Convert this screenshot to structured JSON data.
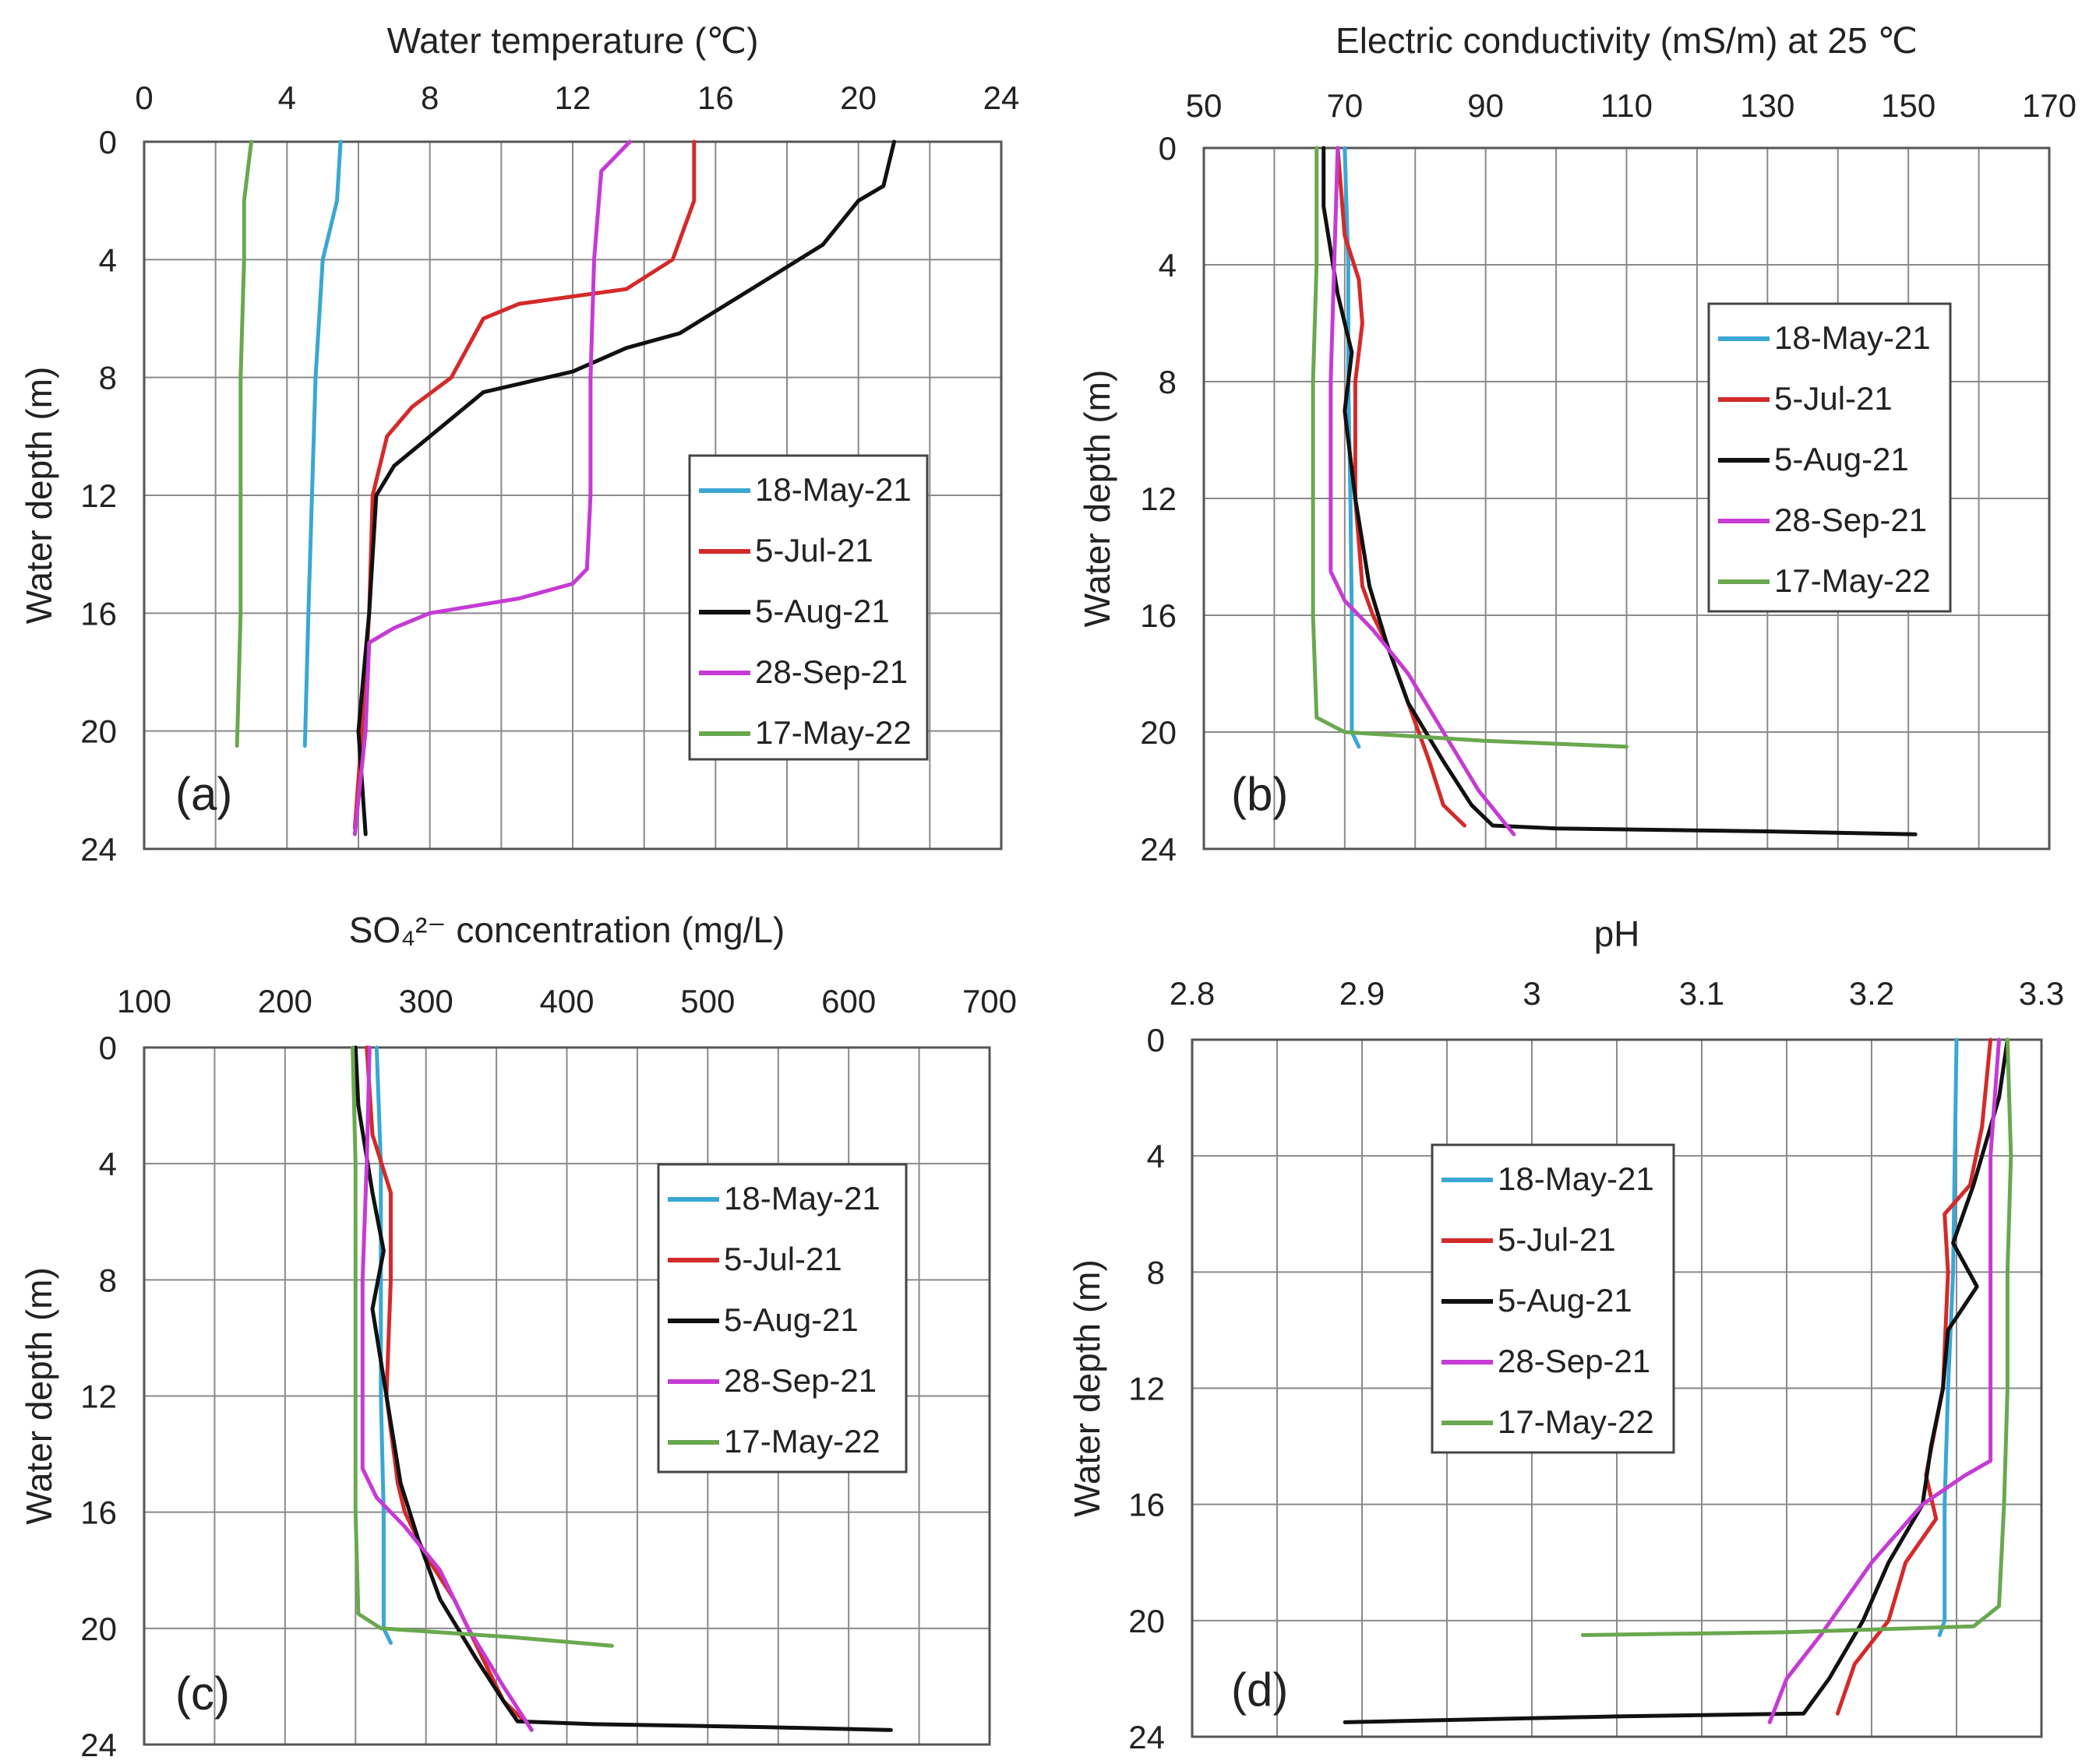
{
  "figure": {
    "panels": [
      {
        "id": "a",
        "title": "Water temperature (℃)"
      },
      {
        "id": "b",
        "title": "Electric conductivity (mS/m) at 25 ℃"
      },
      {
        "id": "c",
        "title": "SO₄²⁻ concentration (mg/L)"
      },
      {
        "id": "d",
        "title": "pH"
      }
    ]
  },
  "series_colors": {
    "18-May-21": "#3aa7d4",
    "5-Jul-21": "#d42a2a",
    "5-Aug-21": "#111111",
    "28-Sep-21": "#c53bd4",
    "17-May-22": "#6aa84f"
  },
  "chart_data": [
    {
      "type": "line",
      "panel_label": "(a)",
      "title": "Water temperature (℃)",
      "xlabel": "Water temperature (℃)",
      "ylabel": "Water depth (m)",
      "xlim": [
        0,
        24
      ],
      "ylim": [
        0,
        24
      ],
      "y_inverted": true,
      "x_axis_position": "top",
      "xticks": [
        "0",
        "4",
        "8",
        "12",
        "16",
        "20",
        "24"
      ],
      "yticks": [
        "0",
        "4",
        "8",
        "12",
        "16",
        "20",
        "24"
      ],
      "grid": true,
      "legend_position": "middle-right",
      "series": [
        {
          "name": "18-May-21",
          "points": [
            [
              5.5,
              0
            ],
            [
              5.4,
              2
            ],
            [
              5.0,
              4
            ],
            [
              4.8,
              8
            ],
            [
              4.7,
              12
            ],
            [
              4.6,
              16
            ],
            [
              4.5,
              20.5
            ]
          ]
        },
        {
          "name": "5-Jul-21",
          "points": [
            [
              15.4,
              0
            ],
            [
              15.4,
              2
            ],
            [
              14.8,
              4
            ],
            [
              13.5,
              5
            ],
            [
              10.5,
              5.5
            ],
            [
              9.5,
              6
            ],
            [
              8.6,
              8
            ],
            [
              7.5,
              9
            ],
            [
              6.8,
              10
            ],
            [
              6.4,
              12
            ],
            [
              6.3,
              16
            ],
            [
              6.1,
              20
            ],
            [
              5.9,
              23.3
            ]
          ]
        },
        {
          "name": "5-Aug-21",
          "points": [
            [
              21.0,
              0
            ],
            [
              20.7,
              1.5
            ],
            [
              20.0,
              2
            ],
            [
              19.0,
              3.5
            ],
            [
              17.0,
              5
            ],
            [
              15.0,
              6.5
            ],
            [
              13.5,
              7
            ],
            [
              12.0,
              7.8
            ],
            [
              9.5,
              8.5
            ],
            [
              8.0,
              10
            ],
            [
              7.0,
              11
            ],
            [
              6.5,
              12
            ],
            [
              6.3,
              16
            ],
            [
              6.0,
              20
            ],
            [
              6.2,
              23.5
            ]
          ]
        },
        {
          "name": "28-Sep-21",
          "points": [
            [
              13.6,
              0
            ],
            [
              12.8,
              1
            ],
            [
              12.6,
              4
            ],
            [
              12.5,
              8
            ],
            [
              12.5,
              12
            ],
            [
              12.4,
              14.5
            ],
            [
              12.0,
              15
            ],
            [
              10.5,
              15.5
            ],
            [
              8.0,
              16
            ],
            [
              7.0,
              16.5
            ],
            [
              6.3,
              17
            ],
            [
              6.2,
              20
            ],
            [
              5.9,
              23.5
            ]
          ]
        },
        {
          "name": "17-May-22",
          "points": [
            [
              3.0,
              0
            ],
            [
              2.8,
              2
            ],
            [
              2.8,
              4
            ],
            [
              2.7,
              8
            ],
            [
              2.7,
              12
            ],
            [
              2.7,
              16
            ],
            [
              2.6,
              20.5
            ]
          ]
        }
      ]
    },
    {
      "type": "line",
      "panel_label": "(b)",
      "title": "Electric conductivity (mS/m) at 25 ℃",
      "xlabel": "Electric conductivity (mS/m) at 25 ℃",
      "ylabel": "Water depth (m)",
      "xlim": [
        50,
        170
      ],
      "ylim": [
        0,
        24
      ],
      "y_inverted": true,
      "x_axis_position": "top",
      "xticks": [
        "50",
        "70",
        "90",
        "110",
        "130",
        "150",
        "170"
      ],
      "yticks": [
        "0",
        "4",
        "8",
        "12",
        "16",
        "20",
        "24"
      ],
      "grid": true,
      "legend_position": "middle-right",
      "series": [
        {
          "name": "18-May-21",
          "points": [
            [
              70,
              0
            ],
            [
              70.5,
              4
            ],
            [
              70.5,
              8
            ],
            [
              70.8,
              12
            ],
            [
              71,
              16
            ],
            [
              71,
              20
            ],
            [
              72,
              20.5
            ]
          ]
        },
        {
          "name": "5-Jul-21",
          "points": [
            [
              69,
              0
            ],
            [
              70,
              3
            ],
            [
              72,
              4.5
            ],
            [
              72.5,
              6
            ],
            [
              71.5,
              8
            ],
            [
              71.5,
              12
            ],
            [
              72.5,
              15
            ],
            [
              74,
              16
            ],
            [
              76,
              17
            ],
            [
              79,
              19
            ],
            [
              82,
              21
            ],
            [
              84,
              22.5
            ],
            [
              87,
              23.2
            ]
          ]
        },
        {
          "name": "5-Aug-21",
          "points": [
            [
              67,
              0
            ],
            [
              67,
              2
            ],
            [
              69,
              5
            ],
            [
              71,
              7
            ],
            [
              70,
              9
            ],
            [
              71.5,
              12
            ],
            [
              73.5,
              15
            ],
            [
              76,
              17
            ],
            [
              79,
              19
            ],
            [
              84,
              21
            ],
            [
              88,
              22.5
            ],
            [
              91,
              23.2
            ],
            [
              100,
              23.3
            ],
            [
              130,
              23.4
            ],
            [
              151,
              23.5
            ]
          ]
        },
        {
          "name": "28-Sep-21",
          "points": [
            [
              69,
              0
            ],
            [
              68.5,
              4
            ],
            [
              68,
              8
            ],
            [
              68,
              12
            ],
            [
              68,
              14.5
            ],
            [
              70,
              15.5
            ],
            [
              74,
              16.5
            ],
            [
              79,
              18
            ],
            [
              84,
              20
            ],
            [
              89,
              22
            ],
            [
              94,
              23.5
            ]
          ]
        },
        {
          "name": "17-May-22",
          "points": [
            [
              66,
              0
            ],
            [
              66,
              4
            ],
            [
              65.5,
              8
            ],
            [
              65.5,
              12
            ],
            [
              65.5,
              16
            ],
            [
              66,
              19.5
            ],
            [
              70,
              20
            ],
            [
              90,
              20.3
            ],
            [
              110,
              20.5
            ]
          ]
        }
      ]
    },
    {
      "type": "line",
      "panel_label": "(c)",
      "title": "SO₄²⁻ concentration (mg/L)",
      "xlabel": "SO₄²⁻ concentration (mg/L)",
      "ylabel": "Water depth (m)",
      "xlim": [
        100,
        700
      ],
      "ylim": [
        0,
        24
      ],
      "y_inverted": true,
      "x_axis_position": "top",
      "xticks": [
        "100",
        "200",
        "300",
        "400",
        "500",
        "600",
        "700"
      ],
      "yticks": [
        "0",
        "4",
        "8",
        "12",
        "16",
        "20",
        "24"
      ],
      "grid": true,
      "legend_position": "middle-right",
      "series": [
        {
          "name": "18-May-21",
          "points": [
            [
              265,
              0
            ],
            [
              268,
              4
            ],
            [
              268,
              8
            ],
            [
              268,
              12
            ],
            [
              270,
              16
            ],
            [
              270,
              20
            ],
            [
              275,
              20.5
            ]
          ]
        },
        {
          "name": "5-Jul-21",
          "points": [
            [
              258,
              0
            ],
            [
              262,
              3
            ],
            [
              275,
              5
            ],
            [
              275,
              8
            ],
            [
              272,
              12
            ],
            [
              280,
              15
            ],
            [
              285,
              16
            ],
            [
              300,
              17.5
            ],
            [
              320,
              19
            ],
            [
              340,
              21
            ],
            [
              355,
              22.5
            ],
            [
              370,
              23.2
            ]
          ]
        },
        {
          "name": "5-Aug-21",
          "points": [
            [
              250,
              0
            ],
            [
              252,
              2
            ],
            [
              262,
              5
            ],
            [
              270,
              7
            ],
            [
              262,
              9
            ],
            [
              272,
              12
            ],
            [
              282,
              15
            ],
            [
              295,
              17
            ],
            [
              310,
              19
            ],
            [
              335,
              21
            ],
            [
              355,
              22.5
            ],
            [
              365,
              23.2
            ],
            [
              420,
              23.3
            ],
            [
              540,
              23.4
            ],
            [
              630,
              23.5
            ]
          ]
        },
        {
          "name": "28-Sep-21",
          "points": [
            [
              260,
              0
            ],
            [
              258,
              4
            ],
            [
              255,
              8
            ],
            [
              255,
              12
            ],
            [
              255,
              14.5
            ],
            [
              265,
              15.5
            ],
            [
              285,
              16.5
            ],
            [
              310,
              18
            ],
            [
              330,
              20
            ],
            [
              355,
              22
            ],
            [
              375,
              23.5
            ]
          ]
        },
        {
          "name": "17-May-22",
          "points": [
            [
              248,
              0
            ],
            [
              250,
              4
            ],
            [
              250,
              8
            ],
            [
              250,
              12
            ],
            [
              250,
              16
            ],
            [
              252,
              19.5
            ],
            [
              268,
              20
            ],
            [
              360,
              20.3
            ],
            [
              432,
              20.6
            ]
          ]
        }
      ]
    },
    {
      "type": "line",
      "panel_label": "(d)",
      "title": "pH",
      "xlabel": "pH",
      "ylabel": "Water depth (m)",
      "xlim": [
        2.8,
        3.3
      ],
      "ylim": [
        0,
        24
      ],
      "y_inverted": true,
      "x_axis_position": "top",
      "xticks": [
        "2.8",
        "2.9",
        "3",
        "3.1",
        "3.2",
        "3.3"
      ],
      "yticks": [
        "0",
        "4",
        "8",
        "12",
        "16",
        "20",
        "24"
      ],
      "grid": true,
      "legend_position": "middle-left",
      "series": [
        {
          "name": "18-May-21",
          "points": [
            [
              3.25,
              0
            ],
            [
              3.249,
              4
            ],
            [
              3.248,
              8
            ],
            [
              3.245,
              12
            ],
            [
              3.243,
              16
            ],
            [
              3.243,
              20
            ],
            [
              3.24,
              20.5
            ]
          ]
        },
        {
          "name": "5-Jul-21",
          "points": [
            [
              3.27,
              0
            ],
            [
              3.265,
              3
            ],
            [
              3.258,
              5
            ],
            [
              3.243,
              6
            ],
            [
              3.245,
              8
            ],
            [
              3.242,
              12
            ],
            [
              3.232,
              15
            ],
            [
              3.238,
              16.5
            ],
            [
              3.22,
              18
            ],
            [
              3.21,
              20
            ],
            [
              3.19,
              21.5
            ],
            [
              3.18,
              23.2
            ]
          ]
        },
        {
          "name": "5-Aug-21",
          "points": [
            [
              3.28,
              0
            ],
            [
              3.275,
              2
            ],
            [
              3.26,
              5
            ],
            [
              3.248,
              7
            ],
            [
              3.262,
              8.5
            ],
            [
              3.245,
              10
            ],
            [
              3.242,
              12
            ],
            [
              3.235,
              14
            ],
            [
              3.23,
              16
            ],
            [
              3.21,
              18
            ],
            [
              3.195,
              20
            ],
            [
              3.175,
              22
            ],
            [
              3.16,
              23.2
            ],
            [
              3.05,
              23.3
            ],
            [
              2.89,
              23.5
            ]
          ]
        },
        {
          "name": "28-Sep-21",
          "points": [
            [
              3.275,
              0
            ],
            [
              3.27,
              4
            ],
            [
              3.27,
              8
            ],
            [
              3.27,
              12
            ],
            [
              3.27,
              14.5
            ],
            [
              3.255,
              15
            ],
            [
              3.23,
              16
            ],
            [
              3.2,
              18
            ],
            [
              3.17,
              20.5
            ],
            [
              3.15,
              22
            ],
            [
              3.14,
              23.5
            ]
          ]
        },
        {
          "name": "17-May-22",
          "points": [
            [
              3.28,
              0
            ],
            [
              3.282,
              4
            ],
            [
              3.28,
              8
            ],
            [
              3.28,
              12
            ],
            [
              3.278,
              16
            ],
            [
              3.275,
              19.5
            ],
            [
              3.26,
              20.2
            ],
            [
              3.15,
              20.4
            ],
            [
              3.03,
              20.5
            ]
          ]
        }
      ]
    }
  ]
}
